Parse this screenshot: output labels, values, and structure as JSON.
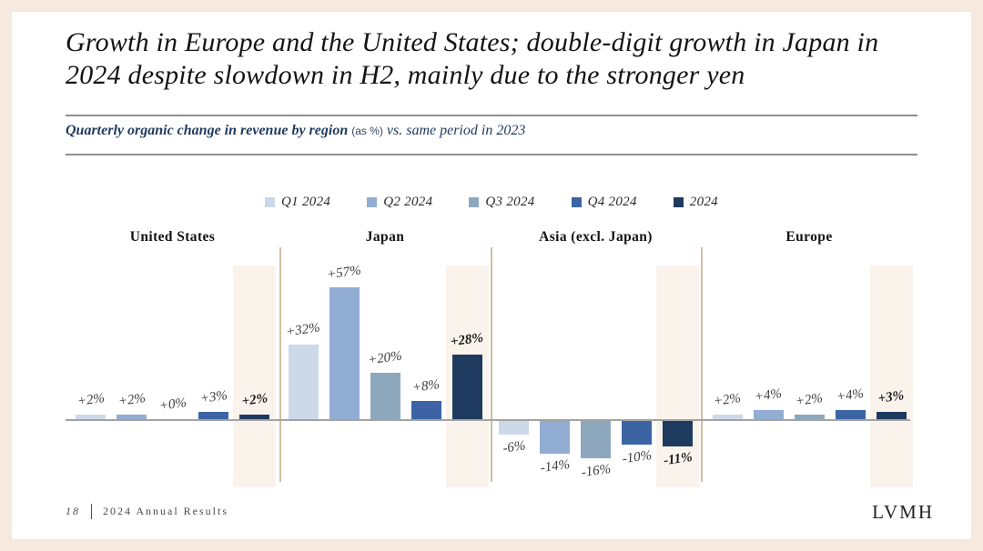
{
  "title": "Growth in Europe and the United States; double-digit growth in Japan in 2024 despite slowdown in H2, mainly due to the stronger yen",
  "subtitle": {
    "main": "Quarterly organic change in revenue by region",
    "unit": "(as %)",
    "comparison": "vs. same period in 2023"
  },
  "colors": {
    "frame_background": "#f6e9dd",
    "slide_background": "#ffffff",
    "subtitle_navy": "#1e3a5f",
    "highlight_band": "#faf3ec",
    "group_separator": "#cdc1a3",
    "axis_line": "#a3a3a3"
  },
  "chart_data": {
    "type": "bar",
    "title": "Quarterly organic change in revenue by region (as %) vs. same period in 2023",
    "categories": [
      "United States",
      "Japan",
      "Asia (excl. Japan)",
      "Europe"
    ],
    "series": [
      {
        "name": "Q1 2024",
        "color": "#ccd9e9",
        "values": [
          2,
          32,
          -6,
          2
        ]
      },
      {
        "name": "Q2 2024",
        "color": "#92add3",
        "values": [
          2,
          57,
          -14,
          4
        ]
      },
      {
        "name": "Q3 2024",
        "color": "#8da8bc",
        "values": [
          0,
          20,
          -16,
          2
        ]
      },
      {
        "name": "Q4 2024",
        "color": "#3c64a4",
        "values": [
          3,
          8,
          -10,
          4
        ]
      },
      {
        "name": "2024",
        "color": "#1e3a5e",
        "values": [
          2,
          28,
          -11,
          3
        ]
      }
    ],
    "labels": [
      [
        "+2%",
        "+2%",
        "+0%",
        "+3%",
        "+2%"
      ],
      [
        "+32%",
        "+57%",
        "+20%",
        "+8%",
        "+28%"
      ],
      [
        "-6%",
        "-14%",
        "-16%",
        "-10%",
        "-11%"
      ],
      [
        "+2%",
        "+4%",
        "+2%",
        "+4%",
        "+3%"
      ]
    ],
    "total_series_index": 4,
    "ylim": [
      -20,
      60
    ],
    "grid": "none",
    "legend_position": "top-center",
    "highlight": "2024 total bars have cream background band"
  },
  "footer": {
    "page_number": "18",
    "label": "2024 Annual Results",
    "brand": "LVMH"
  }
}
